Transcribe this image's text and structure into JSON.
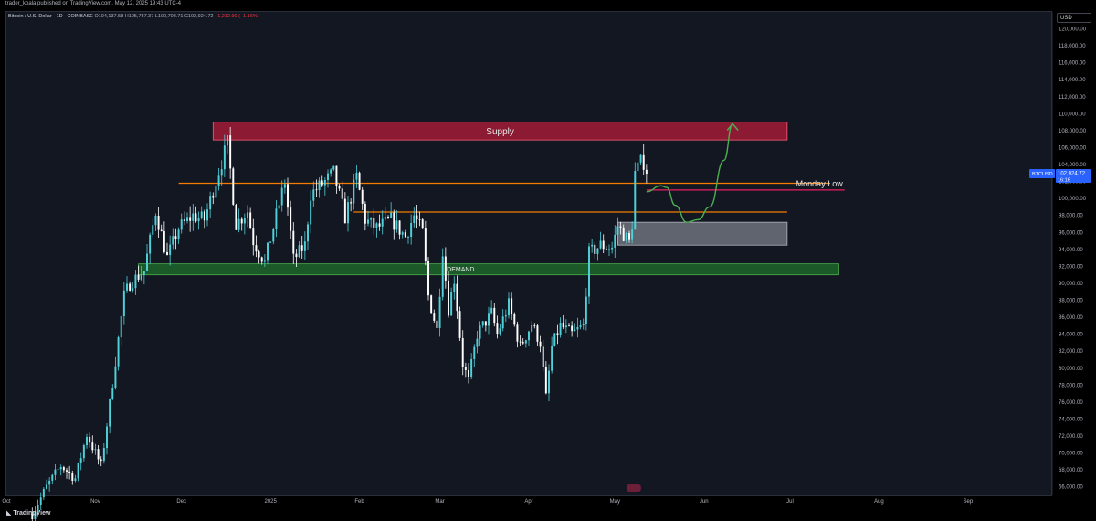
{
  "header": {
    "publisher": "trader_koala published on TradingView.com, May 12, 2025 19:43 UTC-4",
    "symbol": "Bitcoin / U.S. Dollar · 1D · COINBASE",
    "open": "O104,137.58",
    "high": "H105,787.37",
    "low": "L100,703.71",
    "close": "C102,924.72",
    "change": "−1,212.90 (−1.16%)"
  },
  "currency_button": "USD",
  "footer_brand": "TradingView",
  "price_tag": {
    "symbol": "BTCUSD",
    "price": "102,924.72",
    "countdown": "16:16"
  },
  "colors": {
    "background": "#131722",
    "up_candle": "#4fd1d9",
    "down_candle": "#ffffff",
    "supply_zone": "#b71c3a",
    "demand_zone": "#1e6b2a",
    "resistance_line": "#f57c00",
    "monday_low_line": "#e91e63",
    "projection": "#4caf50",
    "entry_box": "#9598a1"
  },
  "chart_data": {
    "type": "candlestick",
    "symbol": "BTCUSD",
    "timeframe": "1D",
    "ylim": [
      65000,
      122000
    ],
    "y_ticks": [
      "66,000.00",
      "68,000.00",
      "70,000.00",
      "72,000.00",
      "74,000.00",
      "76,000.00",
      "78,000.00",
      "80,000.00",
      "82,000.00",
      "84,000.00",
      "86,000.00",
      "88,000.00",
      "90,000.00",
      "92,000.00",
      "94,000.00",
      "96,000.00",
      "98,000.00",
      "100,000.00",
      "102,000.00",
      "104,000.00",
      "106,000.00",
      "108,000.00",
      "110,000.00",
      "112,000.00",
      "114,000.00",
      "116,000.00",
      "118,000.00",
      "120,000.00"
    ],
    "x_range": [
      "2024-10-01",
      "2025-09-30"
    ],
    "x_ticks": [
      {
        "date": "2024-10-01",
        "label": "Oct"
      },
      {
        "date": "2024-11-01",
        "label": "Nov"
      },
      {
        "date": "2024-12-01",
        "label": "Dec"
      },
      {
        "date": "2025-01-01",
        "label": "2025"
      },
      {
        "date": "2025-02-01",
        "label": "Feb"
      },
      {
        "date": "2025-03-01",
        "label": "Mar"
      },
      {
        "date": "2025-04-01",
        "label": "Apr"
      },
      {
        "date": "2025-05-01",
        "label": "May"
      },
      {
        "date": "2025-06-01",
        "label": "Jun"
      },
      {
        "date": "2025-07-01",
        "label": "Jul"
      },
      {
        "date": "2025-08-01",
        "label": "Aug"
      },
      {
        "date": "2025-09-01",
        "label": "Sep"
      }
    ],
    "close_path": [
      [
        "2024-10-10",
        62800
      ],
      [
        "2024-10-15",
        66000
      ],
      [
        "2024-10-20",
        68500
      ],
      [
        "2024-10-25",
        67000
      ],
      [
        "2024-10-29",
        72200
      ],
      [
        "2024-11-03",
        68500
      ],
      [
        "2024-11-06",
        75800
      ],
      [
        "2024-11-11",
        88500
      ],
      [
        "2024-11-13",
        90000
      ],
      [
        "2024-11-18",
        91500
      ],
      [
        "2024-11-22",
        98500
      ],
      [
        "2024-11-26",
        93000
      ],
      [
        "2024-11-30",
        96500
      ],
      [
        "2024-12-05",
        98000
      ],
      [
        "2024-12-09",
        97500
      ],
      [
        "2024-12-12",
        101000
      ],
      [
        "2024-12-17",
        106500
      ],
      [
        "2024-12-20",
        97000
      ],
      [
        "2024-12-24",
        98500
      ],
      [
        "2024-12-26",
        95000
      ],
      [
        "2024-12-30",
        92500
      ],
      [
        "2025-01-03",
        98000
      ],
      [
        "2025-01-06",
        102000
      ],
      [
        "2025-01-09",
        92800
      ],
      [
        "2025-01-13",
        94500
      ],
      [
        "2025-01-15",
        100500
      ],
      [
        "2025-01-20",
        102000
      ],
      [
        "2025-01-23",
        103000
      ],
      [
        "2025-01-27",
        97800
      ],
      [
        "2025-01-31",
        102500
      ],
      [
        "2025-02-03",
        97500
      ],
      [
        "2025-02-07",
        96500
      ],
      [
        "2025-02-12",
        97500
      ],
      [
        "2025-02-17",
        95500
      ],
      [
        "2025-02-20",
        98000
      ],
      [
        "2025-02-23",
        96000
      ],
      [
        "2025-02-25",
        88500
      ],
      [
        "2025-02-28",
        84500
      ],
      [
        "2025-03-02",
        94000
      ],
      [
        "2025-03-04",
        87000
      ],
      [
        "2025-03-06",
        90500
      ],
      [
        "2025-03-09",
        80500
      ],
      [
        "2025-03-11",
        78500
      ],
      [
        "2025-03-14",
        84000
      ],
      [
        "2025-03-19",
        86500
      ],
      [
        "2025-03-21",
        84000
      ],
      [
        "2025-03-25",
        87500
      ],
      [
        "2025-03-29",
        82500
      ],
      [
        "2025-04-02",
        85200
      ],
      [
        "2025-04-05",
        83000
      ],
      [
        "2025-04-07",
        76500
      ],
      [
        "2025-04-09",
        82500
      ],
      [
        "2025-04-12",
        85000
      ],
      [
        "2025-04-16",
        84000
      ],
      [
        "2025-04-20",
        85000
      ],
      [
        "2025-04-22",
        93500
      ],
      [
        "2025-04-26",
        94500
      ],
      [
        "2025-04-30",
        94200
      ],
      [
        "2025-05-02",
        96800
      ],
      [
        "2025-05-06",
        94800
      ],
      [
        "2025-05-07",
        97000
      ],
      [
        "2025-05-08",
        103000
      ],
      [
        "2025-05-10",
        104200
      ],
      [
        "2025-05-11",
        104300
      ],
      [
        "2025-05-12",
        102925
      ]
    ],
    "zones": [
      {
        "name": "supply",
        "label": "Supply",
        "from": "2024-12-12",
        "to": "2025-06-30",
        "low": 106900,
        "high": 109000
      },
      {
        "name": "demand",
        "label": "DEMAND",
        "from": "2024-11-16",
        "to": "2025-07-18",
        "low": 91000,
        "high": 92300
      },
      {
        "name": "entry",
        "label": "",
        "from": "2025-05-02",
        "to": "2025-06-30",
        "low": 94500,
        "high": 97200
      }
    ],
    "lines": [
      {
        "name": "resistance-upper",
        "from": "2024-11-30",
        "to": "2025-07-15",
        "price": 101800
      },
      {
        "name": "resistance-lower",
        "from": "2025-01-30",
        "to": "2025-06-30",
        "price": 98400
      },
      {
        "name": "monday-low",
        "label": "Monday Low",
        "from": "2025-05-12",
        "to": "2025-07-20",
        "price": 101000
      }
    ],
    "projection": [
      [
        "2025-05-12",
        100800
      ],
      [
        "2025-05-17",
        101500
      ],
      [
        "2025-05-19",
        101300
      ],
      [
        "2025-05-22",
        99200
      ],
      [
        "2025-05-26",
        97200
      ],
      [
        "2025-05-30",
        97500
      ],
      [
        "2025-06-03",
        99000
      ],
      [
        "2025-06-08",
        104500
      ],
      [
        "2025-06-11",
        108800
      ]
    ],
    "price_label": "102,924.72"
  }
}
